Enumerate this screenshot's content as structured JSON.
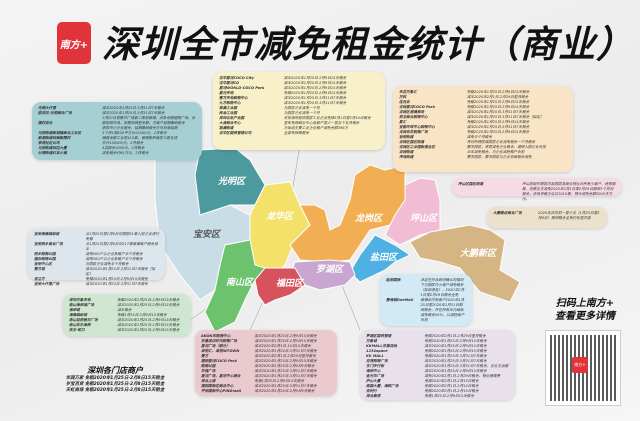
{
  "header": {
    "logo_text": "南方+",
    "title": "深圳全市减免租金统计（商业）"
  },
  "colors": {
    "guangming": "#4d9a9e",
    "baoan": "#c9dde6",
    "longhua": "#f3e16a",
    "longgang": "#f2ae52",
    "pingshan": "#f1bdd4",
    "dapeng": "#d6b585",
    "yantian": "#4fb0e3",
    "luohu": "#c8a6cf",
    "futian": "#d6525d",
    "nanshan": "#6cc26d",
    "brand": "#e0343a"
  },
  "districts": {
    "guangming": "光明区",
    "baoan": "宝安区",
    "longhua": "龙华区",
    "longgang": "龙岗区",
    "pingshan": "坪山区",
    "dapeng": "大鹏新区",
    "yantian": "盐田区",
    "luohu": "罗湖区",
    "futian": "福田区",
    "nanshan": "南山区"
  },
  "boxes": {
    "guangming": [
      [
        "光明大仟里",
        "减半2020年1月25日-3月31日7天租金"
      ],
      [
        "欧亚达·光明商业广场",
        "减半2020年1月25日-3月31日7天租金"
      ],
      [
        "",
        "1月20日至春节广场第二周后商铺，涉及金额超物广场，金"
      ],
      [
        "楼村百业",
        "额按照市场，按期间调整金额，凡商户延期缴纳租金"
      ],
      [
        "",
        "承担中小企业租金，延期缴纳租金方可协商延期"
      ],
      [
        "马田街道新城镇商业工业区",
        "3个月1期500平方计13000元，2月租金"
      ],
      [
        "新湖街道圳美新围村",
        "铺面金额工业区415家，管辖面积商区三面五成"
      ],
      [
        "铁塔社区公司",
        "共计150000元，2月租金"
      ],
      [
        "马田街道圳边大厦",
        "4层租金1000元，2月租金"
      ],
      [
        "公明街道红本小镇",
        "减免租金约65万元，2月租金"
      ]
    ],
    "longhua": [
      [
        "龙华星河COCO City",
        "减半2020年1月25日-2月9日15天租金"
      ],
      [
        "龙华星河CO",
        "减半2020年1月25日-2月9日15天租金"
      ],
      [
        "星河WORLD·COCO Park",
        "减半2020年1月25日-2月9日15天租金"
      ],
      [
        "星光天地",
        "免租2020年1月25日-2月9日15天租金"
      ],
      [
        "壹方天地购物中心",
        "减半2020年1月25日-3月31日7天租金"
      ],
      [
        "九方购物中心",
        "减半2020年1月25日-3月31日7天租金"
      ],
      [
        "观澜工业园",
        "为园区企业减免一个月"
      ],
      [
        "民治工业园",
        "为园区企业减免一个月"
      ],
      [
        "深圳北站产业园",
        "未按场所提供园区工业企业免除2月1日至2月10日租金"
      ],
      [
        "大浪商业中心",
        "宣布免除商业中心各商户至少一至五个五月租金"
      ],
      [
        "观澜街道",
        "为街道主要工业企业租户减免金额396万"
      ],
      [
        "龙华区国资管理公司",
        "全部免除期租金"
      ]
    ],
    "longgang": [
      [
        "布吉万象汇",
        "免租2020年1月25日-2月9日15天租金"
      ],
      [
        "万科",
        "减半2020年2月1日-2月29日整月租金"
      ],
      [
        "佳兆业",
        "免租2020年1月25日-2月9日15天租金"
      ],
      [
        "龙岗星河COCO Park",
        "免租2020年1月25日-2月9日15天租金"
      ],
      [
        "龙岗区港澳商场",
        "减半2020年1月25日-3月31日7天租金"
      ],
      [
        "双龙商业购物中心",
        "减半2020年1月25日-3月31日7天租金（拟定）"
      ],
      [
        "星汇",
        "免租2020年1月25日-2月9日15天租金"
      ],
      [
        "宝能环球中心购物中心",
        "减半2020年1月25日-3月31日7天租金"
      ],
      [
        "龙岗百花购物广场",
        "免租2020年1月25日-2月9日15天租金"
      ],
      [
        "坂田街道",
        "减免半个月租金"
      ],
      [
        "龙岗区园区街道",
        "将对所辖区域园区企业减免租金一个月租金"
      ],
      [
        "龙岗区工业园街道全区",
        "要求园区，将原减免企业租金，调研入园企业负担"
      ],
      [
        "龙岗街道",
        "半年减免租金，为企业减轻租户负担"
      ],
      [
        "坪地街道",
        "要求园区，要求园区与企业协商租金减免"
      ]
    ],
    "pingshan": [
      [
        "坪山区园区街道",
        "坪山区街村辖区内各园区及商业物业对所有小商户、经营商家，房屋业主减免2020年2月1日至2月29日期间1个月的租金，涉及单租企业达1010家，预计减免金额2000多万元。"
      ]
    ],
    "dapeng": [
      [
        "大鹏建设商业广场",
        "2020年农历初一至十五（1月25日至2月8日）期间租金全免约优惠共惠"
      ]
    ],
    "yantian": [
      [
        "盐田国际",
        "决定在符合政府确认的情况下为园区内小商户减免租金（盐田港务），2020年2月1日至2月29日租金全免"
      ],
      [
        "壹海城OneMall",
        "商铺年内免商户2020年1月25日至2020年1月31日期间租金，并在所有年内继续减免租金50%，以减轻商户负担"
      ]
    ],
    "luohu": [
      [
        "罗湖区国资管理",
        "免租2020年2月1日-2月29日整月租金"
      ],
      [
        "万象城",
        "免租2020年1月25日-2月9日15天租金"
      ],
      [
        "KKMALL京基百纳",
        "减半2020年1月25日-2月9日15天租金"
      ],
      [
        "1234space",
        "免租2020年1月25日-2月9日15天租金"
      ],
      [
        "KK MALL",
        "免租2020年1月25日-3月31日7天租金"
      ],
      [
        "百货购物广场",
        "减半2020年1月25日-3月31日7天租金"
      ],
      [
        "东门步行街",
        "减半2020年1月25日-3月31日7天租金，含业主出租"
      ],
      [
        "海岸中心",
        "减半2020年1月25日-2月9日15天租金"
      ],
      [
        "金光华广场",
        "减免2020年2月1日-2月29日租金，物业管理费"
      ],
      [
        "庐山大厦",
        "免租2020年2月1日-2月15日租金"
      ],
      [
        "南国大厦、海鲜广场",
        "免租2020年2月1日-2月15日租金"
      ],
      [
        "百利行",
        "免租2020年2月1日-2月15日租金"
      ],
      [
        "深业泰然",
        "免租1月25日-2月9日15天租金"
      ]
    ],
    "futian": [
      [
        "AKON印购物中心",
        "减半2020年1月25日-2月9日15天租金"
      ],
      [
        "京基滨河时代购物广场",
        "减半2020年1月25日-2月9日15天租金"
      ],
      [
        "星河广场（部分）",
        "减半2020年2月1日-15日15天租金"
      ],
      [
        "卓悦汇、卓悦INTOWN",
        "减半2020年1月25日-3月31日7天租金"
      ],
      [
        "壹方",
        "减半2020年2月1日-2月29日整月租金"
      ],
      [
        "福田星河COCO Park",
        "减半2020年1月25日-2月9日15天租金"
      ],
      [
        "购物公园",
        "减半2020年1月25日-2月9日9天租金"
      ],
      [
        "华强广场",
        "减半2020年1月25日-3月31日7天租金"
      ],
      [
        "星河广场、星河中心商业",
        "减半2020年1月25日-3月31日7天租金"
      ],
      [
        "深业上城",
        "免租1月25日-2月9日15天租金"
      ],
      [
        "福田国际区商业中心",
        "减半2020年1月25日-3月31日7天租金"
      ],
      [
        "平安国际中心PINGmall",
        "减半2020年1月25日-2月9日9天租金"
      ]
    ],
    "nanshan": [
      [
        "深圳万象天地",
        "免租2020年1月25日-2月9日15天租金"
      ],
      [
        "南山海岸城广场",
        "减半2020年1月25日-2月9日15天租金"
      ],
      [
        "海岸城",
        "减半租金"
      ],
      [
        "海雅缤纷城",
        "免租1月25日-2月9日15天租金"
      ],
      [
        "南山益田假日广场",
        "减半2020年1月25日-2月9日15天租金"
      ],
      [
        "南山欢乐海岸",
        "减半2020年1月25日-2月9日15天租金"
      ],
      [
        "欢乐·蛇口",
        "减半2020年1月25日-2月9日15天租金"
      ]
    ],
    "baoan": [
      [
        "宝安海雅缤纷城",
        "从1月25日至2月8日对园区81家入驻企业进行免租"
      ],
      [
        "宝安西乡商业广场",
        "从1月25日至2月8日对217家商铺商户租金减半"
      ],
      [
        "西乡购物公园",
        "减免500户以企业及租户半个月租金"
      ],
      [
        "福永购物公园",
        "减免300户以企业及租户半个月租金"
      ],
      [
        "宝安中心区",
        "对园区企业减免半个月租金"
      ],
      [
        "壹方城",
        "减半2020年1月25日-3月31日7天租金（拟定）"
      ],
      [
        "宝立方",
        "免租2020年1月25日-2月9日15天租金"
      ],
      [
        "宝安大仟里广场",
        "减半2020年1月25日-3月31日7天租金"
      ]
    ]
  },
  "bottom": {
    "title": "深圳各门店商户",
    "lines": [
      "华润万家 免租2020年1月25日-2月8日15天租金",
      "岁宝百货 免租2020年1月25日-2月8日15天租金",
      "天虹商场 免租2020年1月25日-2月8日15天租金"
    ]
  },
  "qr": {
    "line1": "扫码上南方+",
    "line2": "查看更多详情",
    "center_logo": "南方+"
  }
}
